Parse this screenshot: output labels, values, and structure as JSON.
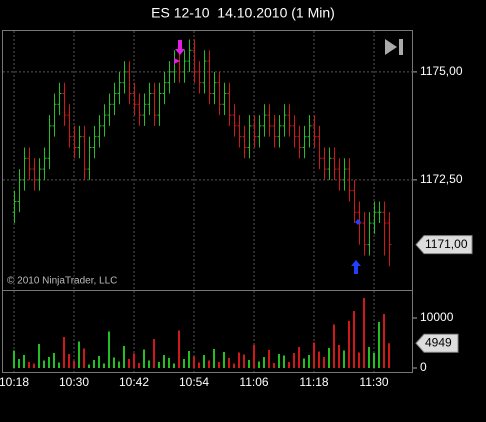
{
  "chart_data": {
    "type": "ohlc",
    "title": "ES 12-10  14.10.2010 (1 Min)",
    "copyright": "© 2010 NinjaTrader, LLC",
    "categories": [
      "10:18",
      null,
      null,
      null,
      null,
      null,
      null,
      null,
      null,
      null,
      null,
      null,
      "10:30",
      null,
      null,
      null,
      null,
      null,
      null,
      null,
      null,
      null,
      null,
      null,
      "10:42",
      null,
      null,
      null,
      null,
      null,
      null,
      null,
      null,
      null,
      null,
      null,
      "10:54",
      null,
      null,
      null,
      null,
      null,
      null,
      null,
      null,
      null,
      null,
      null,
      "11:06",
      null,
      null,
      null,
      null,
      null,
      null,
      null,
      null,
      null,
      null,
      null,
      "11:18",
      null,
      null,
      null,
      null,
      null,
      null,
      null,
      null,
      null,
      null,
      null,
      "11:30",
      null,
      null,
      null
    ],
    "open": [
      1171.75,
      1172.0,
      1172.5,
      1173.0,
      1172.75,
      1172.5,
      1172.75,
      1173.0,
      1173.75,
      1174.25,
      1174.5,
      1174.0,
      1173.5,
      1173.25,
      1173.5,
      1172.75,
      1173.25,
      1173.5,
      1173.75,
      1174.0,
      1174.25,
      1174.5,
      1174.75,
      1175.0,
      1174.5,
      1174.25,
      1174.0,
      1174.25,
      1174.5,
      1174.0,
      1174.5,
      1174.75,
      1175.0,
      1175.25,
      1175.0,
      1175.25,
      1175.5,
      1175.0,
      1174.75,
      1175.25,
      1174.5,
      1174.75,
      1174.25,
      1174.5,
      1174.0,
      1173.75,
      1173.5,
      1173.25,
      1173.75,
      1173.5,
      1173.75,
      1174.0,
      1173.75,
      1173.5,
      1173.75,
      1174.0,
      1173.75,
      1173.5,
      1173.25,
      1173.5,
      1173.75,
      1173.5,
      1173.0,
      1172.75,
      1173.0,
      1172.75,
      1172.5,
      1172.75,
      1172.25,
      1171.75,
      1171.5,
      1171.0,
      1171.5,
      1171.75,
      1171.75,
      1171.5
    ],
    "high": [
      1172.25,
      1172.75,
      1173.25,
      1173.25,
      1173.0,
      1173.0,
      1173.25,
      1174.0,
      1174.5,
      1174.75,
      1174.75,
      1174.25,
      1173.75,
      1173.75,
      1173.75,
      1173.5,
      1173.75,
      1174.0,
      1174.25,
      1174.5,
      1174.75,
      1175.0,
      1175.25,
      1175.25,
      1174.75,
      1174.5,
      1174.5,
      1174.75,
      1174.75,
      1174.75,
      1175.0,
      1175.25,
      1175.5,
      1175.5,
      1175.5,
      1175.75,
      1175.75,
      1175.25,
      1175.5,
      1175.5,
      1175.0,
      1175.0,
      1174.75,
      1174.75,
      1174.25,
      1174.0,
      1173.75,
      1174.0,
      1174.0,
      1174.0,
      1174.25,
      1174.25,
      1174.0,
      1174.0,
      1174.25,
      1174.25,
      1174.0,
      1173.75,
      1173.75,
      1174.0,
      1174.0,
      1173.75,
      1173.25,
      1173.25,
      1173.25,
      1173.0,
      1173.0,
      1173.0,
      1172.5,
      1172.0,
      1171.75,
      1171.75,
      1172.0,
      1172.0,
      1172.0,
      1171.75
    ],
    "low": [
      1171.5,
      1171.75,
      1172.25,
      1172.5,
      1172.25,
      1172.25,
      1172.5,
      1172.75,
      1173.5,
      1174.0,
      1173.75,
      1173.25,
      1173.0,
      1173.0,
      1172.5,
      1172.5,
      1173.0,
      1173.25,
      1173.5,
      1173.75,
      1174.0,
      1174.25,
      1174.5,
      1174.25,
      1174.0,
      1173.75,
      1173.75,
      1174.0,
      1173.75,
      1173.75,
      1174.25,
      1174.5,
      1174.75,
      1174.75,
      1174.75,
      1175.0,
      1174.75,
      1174.5,
      1174.5,
      1174.25,
      1174.25,
      1174.0,
      1174.0,
      1173.75,
      1173.5,
      1173.25,
      1173.0,
      1173.0,
      1173.25,
      1173.25,
      1173.5,
      1173.5,
      1173.25,
      1173.25,
      1173.5,
      1173.5,
      1173.25,
      1173.0,
      1173.0,
      1173.25,
      1173.25,
      1172.75,
      1172.5,
      1172.5,
      1172.5,
      1172.25,
      1172.25,
      1172.0,
      1171.5,
      1171.0,
      1170.75,
      1170.75,
      1171.25,
      1171.5,
      1170.75,
      1170.5
    ],
    "close": [
      1172.0,
      1172.5,
      1173.0,
      1172.75,
      1172.5,
      1172.75,
      1173.0,
      1173.75,
      1174.25,
      1174.5,
      1174.0,
      1173.5,
      1173.25,
      1173.5,
      1172.75,
      1173.25,
      1173.5,
      1173.75,
      1174.0,
      1174.25,
      1174.5,
      1174.75,
      1175.0,
      1174.5,
      1174.25,
      1174.0,
      1174.25,
      1174.5,
      1174.0,
      1174.5,
      1174.75,
      1175.0,
      1175.25,
      1175.0,
      1175.25,
      1175.5,
      1175.0,
      1174.75,
      1175.25,
      1174.5,
      1174.75,
      1174.25,
      1174.5,
      1174.0,
      1173.75,
      1173.5,
      1173.25,
      1173.75,
      1173.5,
      1173.75,
      1174.0,
      1173.75,
      1173.5,
      1173.75,
      1174.0,
      1173.75,
      1173.5,
      1173.25,
      1173.5,
      1173.75,
      1173.5,
      1173.0,
      1172.75,
      1173.0,
      1172.75,
      1172.5,
      1172.75,
      1172.25,
      1171.75,
      1171.5,
      1171.0,
      1171.5,
      1171.75,
      1171.75,
      1171.5,
      1171.0
    ],
    "last_price_label": "1171,00",
    "up_color": "#22c022",
    "down_color": "#d01818",
    "ylim": [
      1169.95,
      1175.97
    ],
    "yticks": [
      {
        "value": 1175,
        "label": "1175,00"
      },
      {
        "value": 1172.5,
        "label": "1172,50"
      }
    ],
    "grid": true,
    "volume": {
      "values": [
        3500,
        1800,
        2600,
        1200,
        900,
        4800,
        1500,
        2200,
        3000,
        1100,
        6200,
        2800,
        1400,
        5300,
        3900,
        700,
        1600,
        2400,
        900,
        7300,
        2100,
        1300,
        4400,
        1800,
        2900,
        1000,
        3700,
        1500,
        5800,
        1200,
        2600,
        2000,
        900,
        7500,
        1800,
        3400,
        2300,
        1100,
        2600,
        1500,
        3800,
        1200,
        3200,
        2000,
        900,
        3100,
        2700,
        1600,
        4600,
        1300,
        2200,
        3600,
        1000,
        2800,
        2500,
        1200,
        3000,
        4200,
        1900,
        2600,
        5100,
        3300,
        2200,
        4000,
        8700,
        4600,
        3500,
        9400,
        11400,
        3100,
        14000,
        4200,
        3000,
        9200,
        10800,
        4949
      ],
      "ylim": [
        0,
        15200
      ],
      "yticks": [
        0,
        10000
      ]
    }
  }
}
